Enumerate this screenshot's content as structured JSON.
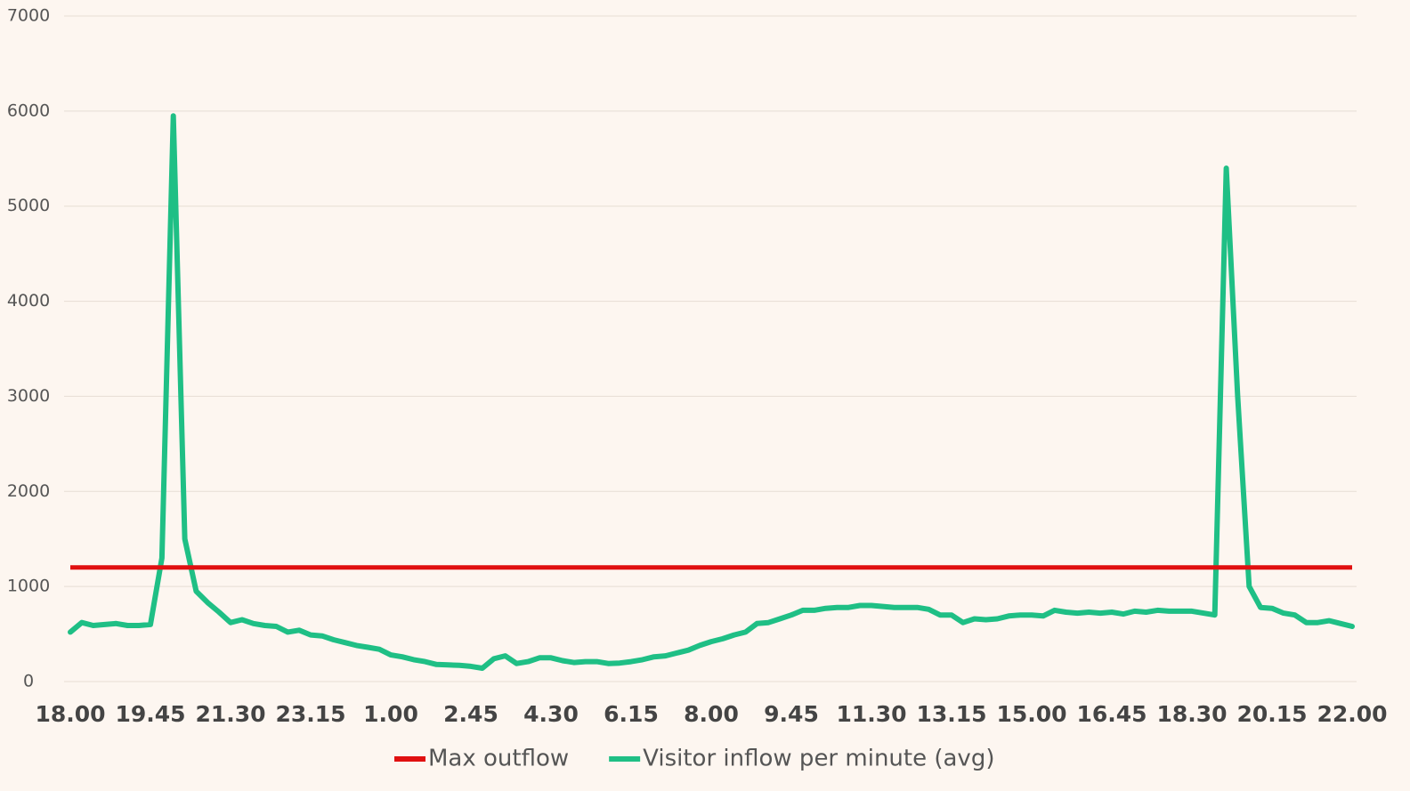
{
  "chart_data": {
    "type": "line",
    "categories": [
      "18.00",
      null,
      null,
      null,
      null,
      null,
      null,
      "19.45",
      null,
      null,
      null,
      null,
      null,
      null,
      "21.30",
      null,
      null,
      null,
      null,
      null,
      null,
      "23.15",
      null,
      null,
      null,
      null,
      null,
      null,
      "1.00",
      null,
      null,
      null,
      null,
      null,
      null,
      "2.45",
      null,
      null,
      null,
      null,
      null,
      null,
      "4.30",
      null,
      null,
      null,
      null,
      null,
      null,
      "6.15",
      null,
      null,
      null,
      null,
      null,
      null,
      "8.00",
      null,
      null,
      null,
      null,
      null,
      null,
      "9.45",
      null,
      null,
      null,
      null,
      null,
      null,
      "11.30",
      null,
      null,
      null,
      null,
      null,
      null,
      "13.15",
      null,
      null,
      null,
      null,
      null,
      null,
      "15.00",
      null,
      null,
      null,
      null,
      null,
      null,
      "16.45",
      null,
      null,
      null,
      null,
      null,
      null,
      "18.30",
      null,
      null,
      null,
      null,
      null,
      null,
      "20.15",
      null,
      null,
      null,
      null,
      null,
      null,
      "22.00"
    ],
    "series": [
      {
        "name": "Visitor inflow per minute (avg)",
        "color": "#1fbf85",
        "values": [
          520,
          620,
          590,
          600,
          610,
          590,
          590,
          600,
          1300,
          5950,
          1500,
          950,
          830,
          730,
          620,
          650,
          610,
          590,
          580,
          520,
          540,
          490,
          480,
          440,
          410,
          380,
          360,
          340,
          280,
          260,
          230,
          210,
          180,
          175,
          170,
          160,
          140,
          240,
          270,
          190,
          210,
          250,
          250,
          220,
          200,
          210,
          210,
          190,
          195,
          210,
          230,
          260,
          270,
          300,
          330,
          380,
          420,
          450,
          490,
          520,
          610,
          620,
          660,
          700,
          750,
          750,
          770,
          780,
          780,
          800,
          800,
          790,
          780,
          780,
          780,
          760,
          700,
          700,
          620,
          660,
          650,
          660,
          690,
          700,
          700,
          690,
          750,
          730,
          720,
          730,
          720,
          730,
          710,
          740,
          730,
          750,
          740,
          740,
          740,
          720,
          700,
          5400,
          3000,
          1000,
          780,
          770,
          720,
          700,
          620,
          620,
          640,
          610,
          580
        ]
      }
    ],
    "reference_line": {
      "name": "Max outflow",
      "value": 1200,
      "color": "#e01010"
    },
    "ylim": [
      0,
      7000
    ],
    "yticks": [
      0,
      1000,
      2000,
      3000,
      4000,
      5000,
      6000,
      7000
    ],
    "grid": true
  }
}
